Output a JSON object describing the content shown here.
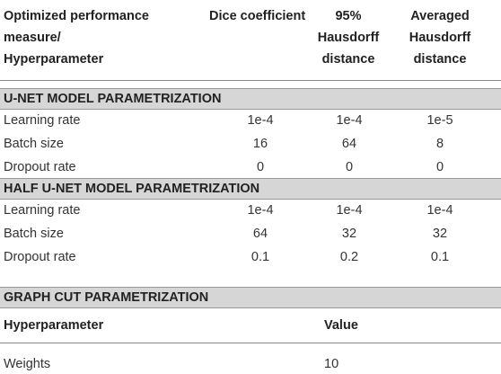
{
  "header": {
    "columns": [
      [
        "Optimized performance",
        "measure/",
        "Hyperparameter"
      ],
      [
        "Dice coefficient"
      ],
      [
        "95%",
        "Hausdorff",
        "distance"
      ],
      [
        "Averaged",
        "Hausdorff",
        "distance"
      ]
    ]
  },
  "sections": [
    {
      "title": "U-NET MODEL PARAMETRIZATION",
      "rows": [
        [
          "Learning rate",
          "1e-4",
          "1e-4",
          "1e-5"
        ],
        [
          "Batch size",
          "16",
          "64",
          "8"
        ],
        [
          "Dropout rate",
          "0",
          "0",
          "0"
        ]
      ]
    },
    {
      "title": "HALF U-NET MODEL PARAMETRIZATION",
      "rows": [
        [
          "Learning rate",
          "1e-4",
          "1e-4",
          "1e-4"
        ],
        [
          "Batch size",
          "64",
          "32",
          "32"
        ],
        [
          "Dropout rate",
          "0.1",
          "0.2",
          "0.1"
        ]
      ]
    }
  ],
  "graph_cut": {
    "title": "GRAPH CUT PARAMETRIZATION",
    "header": [
      "Hyperparameter",
      "Value"
    ],
    "rows": [
      [
        "Weights",
        "10"
      ]
    ]
  }
}
